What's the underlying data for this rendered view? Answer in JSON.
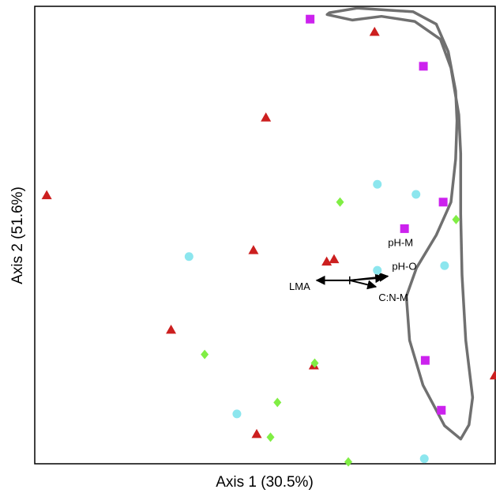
{
  "chart_data": {
    "type": "scatter",
    "xlabel": "Axis 1 (30.5%)",
    "ylabel": "Axis 2 (51.6%)",
    "xlim": [
      0,
      100
    ],
    "ylim": [
      0,
      100
    ],
    "grid": false,
    "legend": "none",
    "series": [
      {
        "marker": "triangle",
        "color": "#cc1f1f",
        "points": [
          {
            "x": 2.6,
            "y": 58.7
          },
          {
            "x": 50.2,
            "y": 75.7
          },
          {
            "x": 73.8,
            "y": 94.4
          },
          {
            "x": 47.5,
            "y": 46.7
          },
          {
            "x": 63.4,
            "y": 44.2
          },
          {
            "x": 65.0,
            "y": 44.7
          },
          {
            "x": 29.6,
            "y": 29.3
          },
          {
            "x": 60.6,
            "y": 21.5
          },
          {
            "x": 48.2,
            "y": 6.5
          },
          {
            "x": 99.9,
            "y": 19.3
          }
        ]
      },
      {
        "marker": "square",
        "color": "#cc22ee",
        "points": [
          {
            "x": 59.8,
            "y": 97.2
          },
          {
            "x": 84.4,
            "y": 86.9
          },
          {
            "x": 88.7,
            "y": 57.2
          },
          {
            "x": 80.3,
            "y": 51.4
          },
          {
            "x": 84.8,
            "y": 22.6
          },
          {
            "x": 88.3,
            "y": 11.7
          }
        ]
      },
      {
        "marker": "circle",
        "color": "#8ce6ee",
        "points": [
          {
            "x": 74.4,
            "y": 61.1
          },
          {
            "x": 82.8,
            "y": 58.9
          },
          {
            "x": 33.5,
            "y": 45.3
          },
          {
            "x": 74.4,
            "y": 42.3
          },
          {
            "x": 89.0,
            "y": 43.3
          },
          {
            "x": 43.9,
            "y": 10.9
          },
          {
            "x": 84.6,
            "y": 1.1
          }
        ]
      },
      {
        "marker": "diamond",
        "color": "#80ee44",
        "points": [
          {
            "x": 66.3,
            "y": 57.2
          },
          {
            "x": 91.5,
            "y": 53.4
          },
          {
            "x": 36.9,
            "y": 23.9
          },
          {
            "x": 60.8,
            "y": 22.0
          },
          {
            "x": 52.7,
            "y": 13.4
          },
          {
            "x": 51.2,
            "y": 5.8
          },
          {
            "x": 68.1,
            "y": 0.4
          }
        ]
      }
    ],
    "vectors": [
      {
        "label": "LMA",
        "x": 61.2,
        "y": 40.1
      },
      {
        "label": "pH-M",
        "x": 76.7,
        "y": 41.0
      },
      {
        "label": "pH-O",
        "x": 75.8,
        "y": 40.7
      },
      {
        "label": "C:N-M",
        "x": 74.1,
        "y": 38.7
      }
    ],
    "vector_origin": {
      "x": 68.4,
      "y": 40.1
    },
    "hull": [
      [
        64.0,
        98.6
      ],
      [
        70.0,
        99.6
      ],
      [
        82.2,
        98.8
      ],
      [
        87.2,
        96.1
      ],
      [
        89.8,
        90.1
      ],
      [
        91.4,
        81.5
      ],
      [
        91.7,
        75.0
      ],
      [
        91.4,
        66.6
      ],
      [
        90.4,
        57.2
      ],
      [
        87.2,
        50.0
      ],
      [
        82.9,
        42.8
      ],
      [
        80.7,
        36.6
      ],
      [
        81.4,
        27.0
      ],
      [
        84.3,
        17.2
      ],
      [
        89.0,
        8.3
      ],
      [
        92.5,
        5.4
      ],
      [
        94.3,
        8.5
      ],
      [
        95.1,
        14.5
      ],
      [
        93.6,
        27.0
      ],
      [
        92.8,
        41.2
      ],
      [
        92.5,
        54.6
      ],
      [
        92.5,
        67.8
      ],
      [
        92.1,
        76.3
      ],
      [
        90.4,
        86.5
      ],
      [
        88.1,
        92.8
      ],
      [
        82.5,
        96.7
      ],
      [
        75.3,
        97.8
      ],
      [
        69.0,
        97.0
      ],
      [
        63.5,
        98.2
      ],
      [
        64.0,
        98.6
      ]
    ],
    "hull_color": "#707070"
  }
}
